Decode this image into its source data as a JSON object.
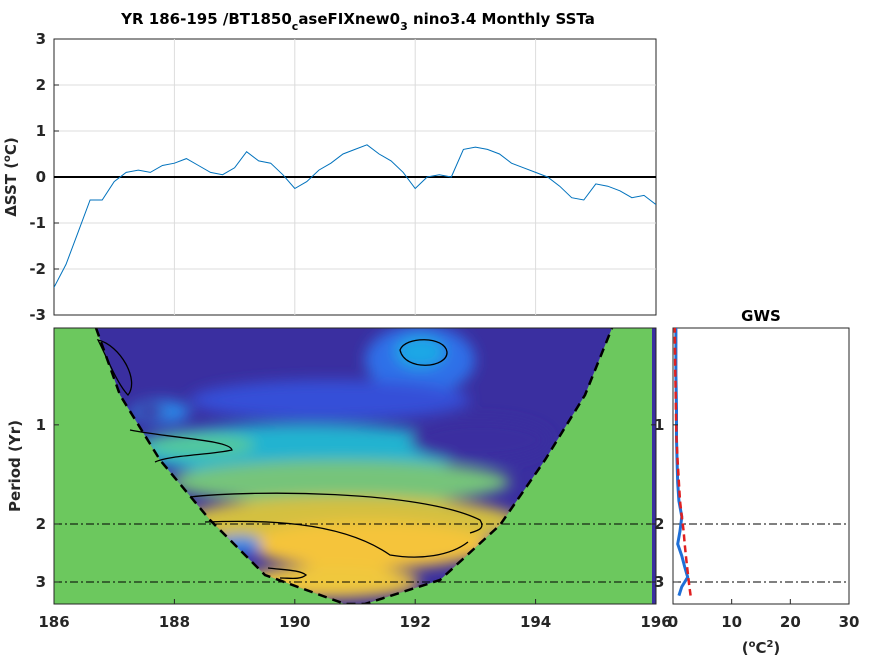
{
  "figure": {
    "title_main": "YR 186-195 /BT1850",
    "title_sub1": "c",
    "title_mid": "aseFIXnew0",
    "title_sub2": "3",
    "title_end": " nino3.4 Monthly SSTa"
  },
  "colors": {
    "sst_line": "#0072BD",
    "zero_line": "#000000",
    "coi_fill": "#6CC85E",
    "gws_line": "#1f6fd6",
    "gws_sig": "#e02020",
    "low_power": "#3a2fa0",
    "high_power": "#f5c43a"
  },
  "chart_data": [
    {
      "type": "line",
      "name": "sst-timeseries",
      "ylabel_delta": "Δ",
      "ylabel_text": "SST (",
      "ylabel_deg": "o",
      "ylabel_unit": "C)",
      "xlim": [
        186,
        196
      ],
      "ylim": [
        -3,
        3
      ],
      "yticks": [
        "3",
        "2",
        "1",
        "0",
        "-1",
        "-2",
        "-3"
      ],
      "grid": true,
      "x": [
        186.0,
        186.2,
        186.4,
        186.6,
        186.8,
        187.0,
        187.2,
        187.4,
        187.6,
        187.8,
        188.0,
        188.2,
        188.4,
        188.6,
        188.8,
        189.0,
        189.2,
        189.4,
        189.6,
        189.8,
        190.0,
        190.2,
        190.4,
        190.6,
        190.8,
        191.0,
        191.2,
        191.4,
        191.6,
        191.8,
        192.0,
        192.2,
        192.4,
        192.6,
        192.8,
        193.0,
        193.2,
        193.4,
        193.6,
        193.8,
        194.0,
        194.2,
        194.4,
        194.6,
        194.8,
        195.0,
        195.2,
        195.4,
        195.6,
        195.8,
        196.0
      ],
      "y": [
        -2.4,
        -1.9,
        -1.2,
        -0.5,
        -0.5,
        -0.1,
        0.1,
        0.15,
        0.1,
        0.25,
        0.3,
        0.4,
        0.25,
        0.1,
        0.05,
        0.2,
        0.55,
        0.35,
        0.3,
        0.05,
        -0.25,
        -0.1,
        0.15,
        0.3,
        0.5,
        0.6,
        0.7,
        0.5,
        0.35,
        0.1,
        -0.25,
        0.0,
        0.05,
        0.0,
        0.6,
        0.65,
        0.6,
        0.5,
        0.3,
        0.2,
        0.1,
        0.0,
        -0.2,
        -0.45,
        -0.5,
        -0.15,
        -0.2,
        -0.3,
        -0.45,
        -0.4,
        -0.6
      ]
    },
    {
      "type": "heatmap",
      "name": "wavelet-power",
      "ylabel": "Period (Yr)",
      "xlim": [
        186,
        196
      ],
      "xticks": [
        "186",
        "188",
        "190",
        "192",
        "194",
        "196"
      ],
      "yticks": [
        "1",
        "2",
        "3"
      ],
      "ref_periods": [
        2,
        3
      ]
    },
    {
      "type": "line",
      "name": "gws",
      "title": "GWS",
      "xlabel_pre": "(",
      "xlabel_deg": "o",
      "xlabel_mid": "C",
      "xlabel_sup": "2",
      "xlabel_end": ")",
      "xlim": [
        0,
        30
      ],
      "xticks": [
        "0",
        "10",
        "20",
        "30"
      ],
      "yticks": [
        "1",
        "2",
        "3"
      ],
      "ref_periods": [
        2,
        3
      ],
      "period": [
        0.5,
        0.7,
        0.9,
        1.1,
        1.3,
        1.5,
        1.7,
        1.9,
        2.1,
        2.3,
        2.5,
        2.7,
        2.9,
        3.1,
        3.3
      ],
      "power": [
        0.5,
        0.5,
        0.6,
        0.6,
        0.7,
        0.8,
        1.0,
        1.5,
        1.2,
        0.8,
        1.5,
        2.0,
        2.5,
        1.5,
        1.0
      ],
      "significance": [
        0.3,
        0.4,
        0.5,
        0.6,
        0.8,
        1.0,
        1.2,
        1.5,
        1.8,
        2.0,
        2.2,
        2.4,
        2.6,
        2.8,
        3.0
      ]
    }
  ]
}
